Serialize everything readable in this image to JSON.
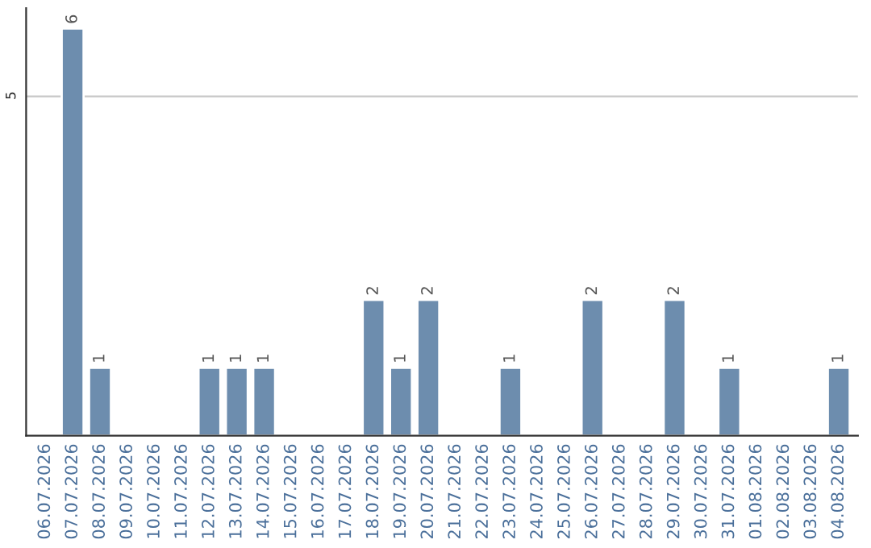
{
  "chart_data": {
    "type": "bar",
    "categories": [
      "06.07.2026",
      "07.07.2026",
      "08.07.2026",
      "09.07.2026",
      "10.07.2026",
      "11.07.2026",
      "12.07.2026",
      "13.07.2026",
      "14.07.2026",
      "15.07.2026",
      "16.07.2026",
      "17.07.2026",
      "18.07.2026",
      "19.07.2026",
      "20.07.2026",
      "21.07.2026",
      "22.07.2026",
      "23.07.2026",
      "24.07.2026",
      "25.07.2026",
      "26.07.2026",
      "27.07.2026",
      "28.07.2026",
      "29.07.2026",
      "30.07.2026",
      "31.07.2026",
      "01.08.2026",
      "02.08.2026",
      "03.08.2026",
      "04.08.2026"
    ],
    "values": [
      0,
      6,
      1,
      0,
      0,
      0,
      1,
      1,
      1,
      0,
      0,
      0,
      2,
      1,
      2,
      0,
      0,
      1,
      0,
      0,
      2,
      0,
      0,
      2,
      0,
      1,
      0,
      0,
      0,
      1
    ],
    "value_labels": [
      null,
      "6",
      "1",
      null,
      null,
      null,
      "1",
      "1",
      "1",
      null,
      null,
      null,
      "2",
      "1",
      "2",
      null,
      null,
      "1",
      null,
      null,
      "2",
      null,
      null,
      "2",
      null,
      "1",
      null,
      null,
      null,
      "1"
    ],
    "color": "#6d8dae",
    "ylim": [
      0,
      6.3
    ],
    "yticks": [
      5
    ],
    "grid": "y"
  }
}
